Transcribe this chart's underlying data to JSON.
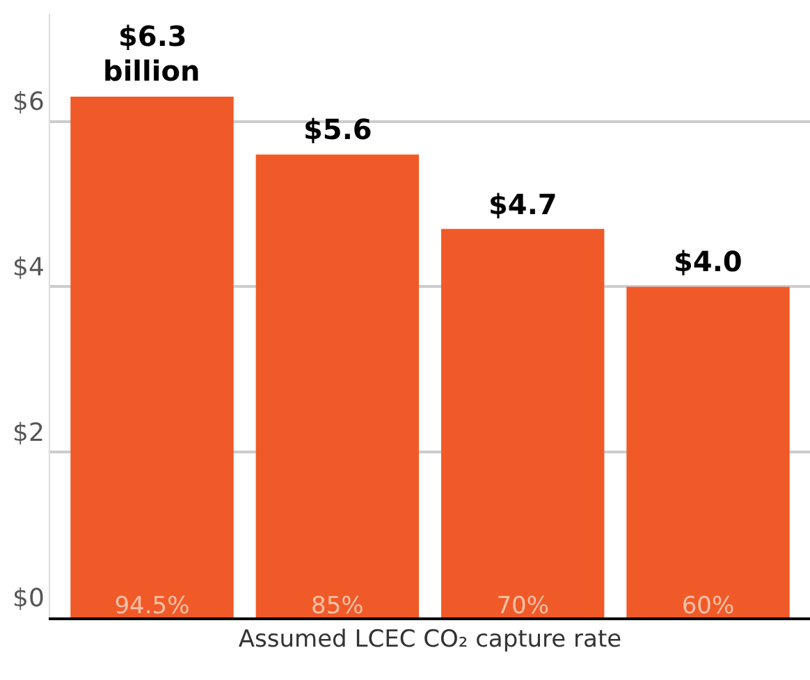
{
  "chart_data": {
    "type": "bar",
    "categories": [
      "94.5%",
      "85%",
      "70%",
      "60%"
    ],
    "values": [
      6.3,
      5.6,
      4.7,
      4.0
    ],
    "value_labels": [
      "$6.3",
      "$5.6",
      "$4.7",
      "$4.0"
    ],
    "annotations": [
      {
        "text": "billion",
        "x": "94.5%",
        "y": 6.3
      }
    ],
    "color": "#f05a28",
    "xlabel": "Assumed LCEC CO₂ capture rate",
    "ylim": [
      0,
      7.3
    ],
    "yticks": [
      {
        "value": 0,
        "label": "$0"
      },
      {
        "value": 2,
        "label": "$2"
      },
      {
        "value": 4,
        "label": "$4"
      },
      {
        "value": 6,
        "label": "$6"
      }
    ],
    "grid": "y"
  }
}
